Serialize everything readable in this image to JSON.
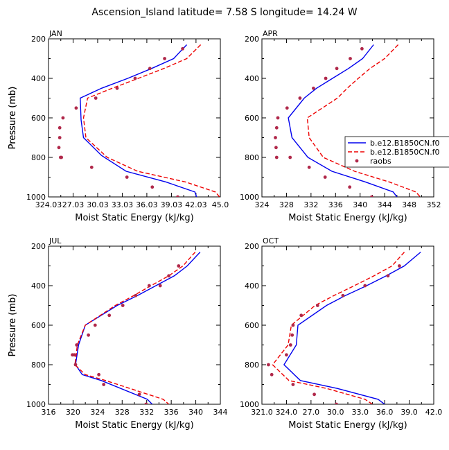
{
  "title": "Ascension_Island   latitude=  7.58 S  longitude=  14.24 W",
  "colors": {
    "model1": "#0000ee",
    "model2": "#ee0000",
    "obs": "#b0284a",
    "axis": "#000000"
  },
  "legend": {
    "entries": [
      "b.e12.B1850CN.f0",
      "b.e12.B1850CN.f0",
      "raobs"
    ]
  },
  "chart_data": [
    {
      "type": "line",
      "title": "JAN",
      "xlabel": "Moist Static Energy (kJ/kg)",
      "ylabel": "Pressure (mb)",
      "xlim": [
        324.03,
        345.0
      ],
      "xticks": [
        324.03,
        327.03,
        330.03,
        333.03,
        336.03,
        339.03,
        342.03,
        345.0
      ],
      "xtick_labels": [
        "324.03",
        "27.03",
        "30.03",
        "33.03",
        "36.03",
        "39.03",
        "42.03",
        "45.0"
      ],
      "ylim": [
        200,
        1000
      ],
      "yticks": [
        200,
        400,
        600,
        800,
        1000
      ],
      "series": [
        {
          "name": "b.e12.B1850CN.f0 (blue)",
          "style": "solid",
          "x": [
            340.9,
            339.3,
            336.6,
            333.7,
            330.5,
            327.9,
            328.0,
            328.3,
            330.5,
            333.5,
            338.4,
            341.9,
            342.1
          ],
          "y": [
            230,
            300,
            350,
            400,
            450,
            500,
            610,
            700,
            790,
            870,
            925,
            975,
            1000
          ]
        },
        {
          "name": "b.e12.B1850CN.f0 (red)",
          "style": "dashed",
          "x": [
            342.6,
            340.9,
            338.1,
            335.0,
            331.8,
            328.8,
            328.3,
            328.6,
            331.2,
            334.9,
            340.8,
            344.4,
            344.9
          ],
          "y": [
            230,
            300,
            350,
            400,
            450,
            500,
            600,
            700,
            800,
            870,
            925,
            975,
            1000
          ]
        }
      ],
      "obs": {
        "x": [
          340.4,
          338.2,
          336.4,
          334.6,
          332.4,
          329.8,
          327.4,
          325.8,
          325.4,
          325.4,
          325.3,
          325.5,
          325.6,
          329.3,
          333.6,
          336.7,
          339.8
        ],
        "y": [
          250,
          300,
          350,
          400,
          450,
          500,
          550,
          600,
          650,
          700,
          750,
          800,
          800,
          850,
          900,
          950,
          1000
        ]
      }
    },
    {
      "type": "line",
      "title": "APR",
      "xlabel": "Moist Static Energy (kJ/kg)",
      "ylabel": "Pressure (mb)",
      "xlim": [
        324,
        352
      ],
      "xticks": [
        324,
        328,
        332,
        336,
        340,
        344,
        348,
        352
      ],
      "xtick_labels": [
        "324",
        "328",
        "332",
        "336",
        "340",
        "344",
        "348",
        "352"
      ],
      "ylim": [
        200,
        1000
      ],
      "yticks": [
        200,
        400,
        600,
        800,
        1000
      ],
      "series": [
        {
          "name": "b.e12.B1850CN.f0 (blue)",
          "style": "solid",
          "x": [
            342.2,
            340.4,
            338.1,
            335.5,
            332.9,
            330.9,
            328.3,
            328.9,
            331.5,
            335.4,
            340.9,
            345.4,
            346.0
          ],
          "y": [
            230,
            300,
            350,
            400,
            450,
            500,
            600,
            700,
            800,
            870,
            925,
            975,
            1000
          ]
        },
        {
          "name": "b.e12.B1850CN.f0 (red)",
          "style": "dashed",
          "x": [
            346.2,
            344.0,
            341.6,
            339.7,
            337.9,
            336.3,
            331.4,
            331.7,
            334.0,
            339.1,
            344.8,
            349.1,
            349.8
          ],
          "y": [
            230,
            300,
            350,
            400,
            450,
            500,
            600,
            700,
            800,
            870,
            925,
            975,
            1000
          ]
        }
      ],
      "obs": {
        "x": [
          340.3,
          338.4,
          336.2,
          334.4,
          332.4,
          330.2,
          328.1,
          326.6,
          326.4,
          326.2,
          326.3,
          326.4,
          328.6,
          331.7,
          334.3,
          338.3,
          341.9
        ],
        "y": [
          250,
          300,
          350,
          400,
          450,
          500,
          550,
          600,
          650,
          700,
          750,
          800,
          800,
          850,
          900,
          950,
          1000
        ]
      }
    },
    {
      "type": "line",
      "title": "JUL",
      "xlabel": "Moist Static Energy (kJ/kg)",
      "ylabel": "Pressure (mb)",
      "xlim": [
        316,
        344
      ],
      "xticks": [
        316,
        320,
        324,
        328,
        332,
        336,
        340,
        344
      ],
      "xtick_labels": [
        "316",
        "320",
        "324",
        "328",
        "332",
        "336",
        "340",
        "344"
      ],
      "ylim": [
        200,
        1000
      ],
      "yticks": [
        200,
        400,
        600,
        800,
        1000
      ],
      "series": [
        {
          "name": "b.e12.B1850CN.f0 (blue)",
          "style": "solid",
          "x": [
            340.7,
            338.6,
            336.5,
            333.5,
            330.5,
            327.2,
            322.0,
            320.9,
            320.4,
            321.5,
            324.6,
            332.1,
            332.9
          ],
          "y": [
            230,
            300,
            350,
            400,
            450,
            500,
            600,
            700,
            800,
            850,
            880,
            975,
            1000
          ]
        },
        {
          "name": "b.e12.B1850CN.f0 (red)",
          "style": "dashed",
          "x": [
            339.9,
            337.9,
            335.6,
            332.7,
            329.9,
            326.9,
            322.0,
            320.7,
            320.3,
            322.0,
            325.3,
            334.7,
            335.6
          ],
          "y": [
            230,
            300,
            350,
            400,
            450,
            500,
            600,
            700,
            800,
            850,
            880,
            975,
            1000
          ]
        }
      ],
      "obs": {
        "x": [
          337.2,
          335.6,
          334.2,
          332.4,
          330.2,
          328.1,
          325.9,
          323.6,
          322.5,
          320.6,
          320.2,
          319.9,
          320.4,
          324.2,
          325.0,
          330.8,
          331.9
        ],
        "y": [
          300,
          350,
          400,
          400,
          450,
          500,
          550,
          600,
          650,
          700,
          750,
          750,
          800,
          850,
          900,
          950,
          1000
        ]
      }
    },
    {
      "type": "line",
      "title": "OCT",
      "xlabel": "Moist Static Energy (kJ/kg)",
      "ylabel": "Pressure (mb)",
      "xlim": [
        321.0,
        342.0
      ],
      "xticks": [
        321.0,
        324.0,
        327.0,
        330.0,
        333.0,
        336.0,
        339.0,
        342.0
      ],
      "xtick_labels": [
        "321.0",
        "324.0",
        "27.0",
        "30.0",
        "33.0",
        "36.0",
        "39.0",
        "42.0"
      ],
      "ylim": [
        200,
        1000
      ],
      "yticks": [
        200,
        400,
        600,
        800,
        1000
      ],
      "series": [
        {
          "name": "b.e12.B1850CN.f0 (blue)",
          "style": "solid",
          "x": [
            340.4,
            338.4,
            336.2,
            333.8,
            331.2,
            328.9,
            325.4,
            325.2,
            323.7,
            325.7,
            330.2,
            335.2,
            336.0
          ],
          "y": [
            230,
            300,
            350,
            400,
            450,
            500,
            600,
            700,
            800,
            880,
            920,
            975,
            1000
          ]
        },
        {
          "name": "b.e12.B1850CN.f0 (red)",
          "style": "dashed",
          "x": [
            338.4,
            336.9,
            334.7,
            332.3,
            329.8,
            327.5,
            324.6,
            324.2,
            322.3,
            324.3,
            328.9,
            333.6,
            334.5
          ],
          "y": [
            230,
            300,
            350,
            400,
            450,
            500,
            600,
            700,
            800,
            880,
            920,
            975,
            1000
          ]
        }
      ],
      "obs": {
        "x": [
          337.8,
          336.4,
          333.6,
          330.9,
          327.8,
          325.8,
          324.8,
          324.7,
          324.5,
          324.0,
          321.8,
          322.2,
          324.8,
          327.4,
          330.1
        ],
        "y": [
          300,
          350,
          400,
          450,
          500,
          550,
          600,
          650,
          700,
          750,
          800,
          850,
          900,
          950,
          1000
        ]
      }
    }
  ]
}
